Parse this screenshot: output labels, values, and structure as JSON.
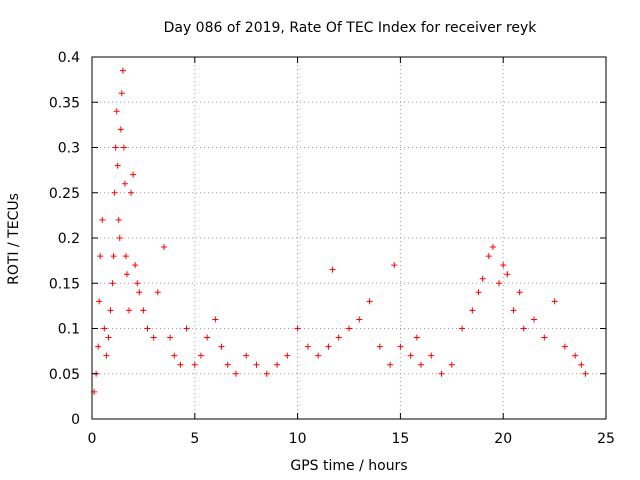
{
  "chart_data": {
    "type": "scatter",
    "title": "Day 086 of 2019, Rate Of TEC Index for receiver reyk",
    "xlabel": "GPS time / hours",
    "ylabel": "ROTI / TECUs",
    "xlim": [
      0,
      25
    ],
    "ylim": [
      0,
      0.4
    ],
    "x_ticks": [
      "0",
      "5",
      "10",
      "15",
      "20",
      "25"
    ],
    "y_ticks": [
      "0",
      "0.05",
      "0.1",
      "0.15",
      "0.2",
      "0.25",
      "0.3",
      "0.35",
      "0.4"
    ],
    "grid": true,
    "marker": "+",
    "series": [
      {
        "name": "ROTI",
        "color": "#ff0000",
        "x": [
          0.1,
          0.2,
          0.3,
          0.35,
          0.4,
          0.5,
          0.6,
          0.7,
          0.8,
          0.9,
          1.0,
          1.05,
          1.1,
          1.15,
          1.2,
          1.25,
          1.3,
          1.35,
          1.4,
          1.45,
          1.5,
          1.55,
          1.6,
          1.65,
          1.7,
          1.8,
          1.9,
          2.0,
          2.1,
          2.2,
          2.3,
          2.5,
          2.7,
          3.0,
          3.2,
          3.5,
          3.8,
          4.0,
          4.3,
          4.6,
          5.0,
          5.3,
          5.6,
          6.0,
          6.3,
          6.6,
          7.0,
          7.5,
          8.0,
          8.5,
          9.0,
          9.5,
          10.0,
          10.5,
          11.0,
          11.5,
          11.7,
          12.0,
          12.5,
          13.0,
          13.5,
          14.0,
          14.5,
          14.7,
          15.0,
          15.5,
          15.8,
          16.0,
          16.5,
          17.0,
          17.5,
          18.0,
          18.5,
          18.8,
          19.0,
          19.3,
          19.5,
          19.8,
          20.0,
          20.2,
          20.5,
          20.8,
          21.0,
          21.5,
          22.0,
          22.5,
          23.0,
          23.5,
          23.8,
          24.0
        ],
        "y": [
          0.03,
          0.05,
          0.08,
          0.13,
          0.18,
          0.22,
          0.1,
          0.07,
          0.09,
          0.12,
          0.15,
          0.18,
          0.25,
          0.3,
          0.34,
          0.28,
          0.22,
          0.2,
          0.32,
          0.36,
          0.385,
          0.3,
          0.26,
          0.18,
          0.16,
          0.12,
          0.25,
          0.27,
          0.17,
          0.15,
          0.14,
          0.12,
          0.1,
          0.09,
          0.14,
          0.19,
          0.09,
          0.07,
          0.06,
          0.1,
          0.06,
          0.07,
          0.09,
          0.11,
          0.08,
          0.06,
          0.05,
          0.07,
          0.06,
          0.05,
          0.06,
          0.07,
          0.1,
          0.08,
          0.07,
          0.08,
          0.165,
          0.09,
          0.1,
          0.11,
          0.13,
          0.08,
          0.06,
          0.17,
          0.08,
          0.07,
          0.09,
          0.06,
          0.07,
          0.05,
          0.06,
          0.1,
          0.12,
          0.14,
          0.155,
          0.18,
          0.19,
          0.15,
          0.17,
          0.16,
          0.12,
          0.14,
          0.1,
          0.11,
          0.09,
          0.13,
          0.08,
          0.07,
          0.06,
          0.05
        ]
      }
    ]
  }
}
